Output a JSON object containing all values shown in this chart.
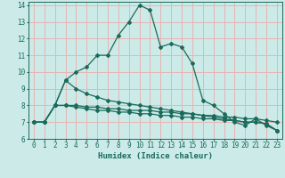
{
  "xlabel": "Humidex (Indice chaleur)",
  "xlim": [
    -0.5,
    23.5
  ],
  "ylim": [
    6,
    14.2
  ],
  "yticks": [
    6,
    7,
    8,
    9,
    10,
    11,
    12,
    13,
    14
  ],
  "xticks": [
    0,
    1,
    2,
    3,
    4,
    5,
    6,
    7,
    8,
    9,
    10,
    11,
    12,
    13,
    14,
    15,
    16,
    17,
    18,
    19,
    20,
    21,
    22,
    23
  ],
  "background_color": "#cbeae8",
  "grid_color": "#e8b4b4",
  "line_color": "#1a6b5a",
  "lines": [
    {
      "x": [
        0,
        1,
        2,
        3,
        4,
        5,
        6,
        7,
        8,
        9,
        10,
        11,
        12,
        13,
        14,
        15,
        16,
        17,
        18,
        19,
        20,
        21,
        22,
        23
      ],
      "y": [
        7,
        7,
        8,
        9.5,
        10,
        10.3,
        11,
        11,
        12.2,
        13,
        14,
        13.7,
        11.5,
        11.7,
        11.5,
        10.5,
        8.3,
        8,
        7.5,
        7,
        6.8,
        7.2,
        6.8,
        6.5
      ]
    },
    {
      "x": [
        0,
        1,
        2,
        3,
        4,
        5,
        6,
        7,
        8,
        9,
        10,
        11,
        12,
        13,
        14,
        15,
        16,
        17,
        18,
        19,
        20,
        21,
        22,
        23
      ],
      "y": [
        7,
        7,
        8,
        9.5,
        9,
        8.7,
        8.5,
        8.3,
        8.2,
        8.1,
        8.0,
        7.9,
        7.8,
        7.7,
        7.6,
        7.5,
        7.4,
        7.3,
        7.2,
        7.1,
        7.0,
        7.0,
        6.9,
        6.5
      ]
    },
    {
      "x": [
        0,
        1,
        2,
        3,
        4,
        5,
        6,
        7,
        8,
        9,
        10,
        11,
        12,
        13,
        14,
        15,
        16,
        17,
        18,
        19,
        20,
        21,
        22,
        23
      ],
      "y": [
        7,
        7,
        8,
        8,
        8,
        7.9,
        7.9,
        7.8,
        7.8,
        7.7,
        7.7,
        7.7,
        7.6,
        7.6,
        7.5,
        7.5,
        7.4,
        7.4,
        7.3,
        7.3,
        7.2,
        7.2,
        7.1,
        7.0
      ]
    },
    {
      "x": [
        0,
        1,
        2,
        3,
        4,
        5,
        6,
        7,
        8,
        9,
        10,
        11,
        12,
        13,
        14,
        15,
        16,
        17,
        18,
        19,
        20,
        21,
        22,
        23
      ],
      "y": [
        7,
        7,
        8,
        8,
        7.9,
        7.8,
        7.7,
        7.7,
        7.6,
        7.6,
        7.5,
        7.5,
        7.4,
        7.4,
        7.3,
        7.3,
        7.2,
        7.2,
        7.1,
        7.1,
        7.0,
        7.0,
        6.9,
        6.5
      ]
    }
  ]
}
